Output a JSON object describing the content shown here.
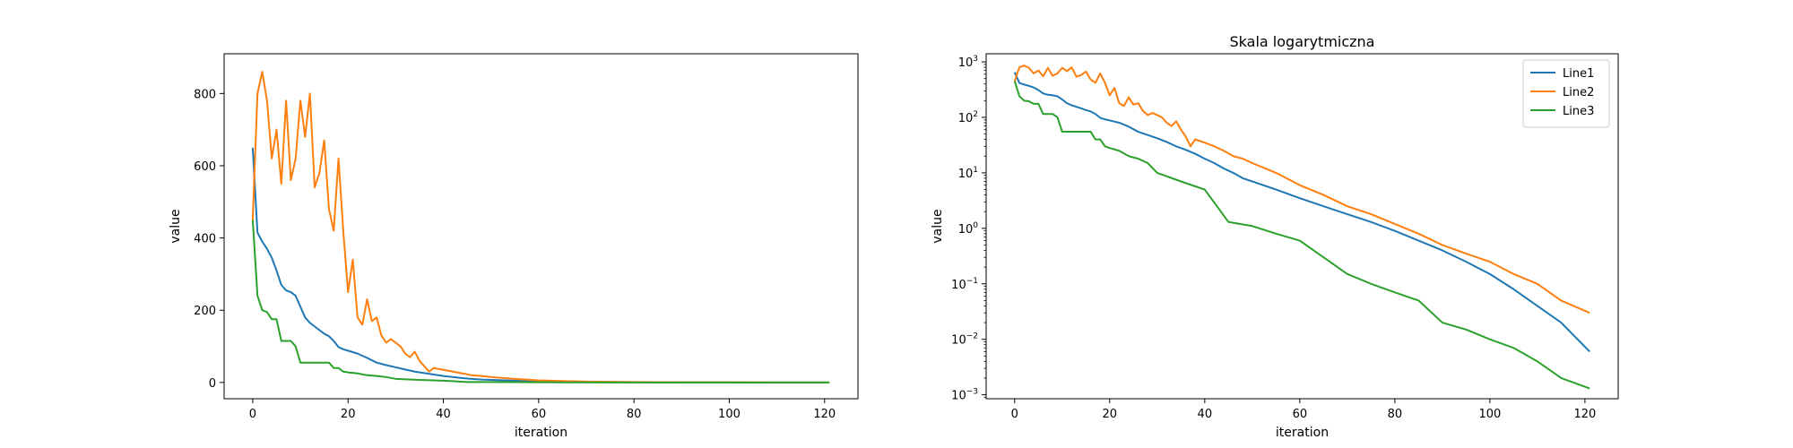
{
  "chart_data": [
    {
      "type": "line",
      "title": "",
      "xlabel": "iteration",
      "ylabel": "value",
      "xlim": [
        -6,
        127
      ],
      "ylim": [
        -45,
        910
      ],
      "yscale": "linear",
      "xticks": [
        0,
        20,
        40,
        60,
        80,
        100,
        120
      ],
      "xtick_labels": [
        "0",
        "20",
        "40",
        "60",
        "80",
        "100",
        "120"
      ],
      "yticks": [
        0,
        200,
        400,
        600,
        800
      ],
      "ytick_labels": [
        "0",
        "200",
        "400",
        "600",
        "800"
      ],
      "grid": false,
      "legend": null,
      "series": [
        {
          "color": "#1f77b4",
          "x": [
            0,
            1,
            2,
            3,
            4,
            5,
            6,
            7,
            8,
            9,
            10,
            11,
            12,
            13,
            14,
            15,
            16,
            17,
            18,
            19,
            20,
            22,
            24,
            26,
            28,
            30,
            32,
            34,
            36,
            38,
            40,
            42,
            44,
            46,
            48,
            50,
            55,
            60,
            65,
            70,
            75,
            80,
            85,
            90,
            95,
            100,
            105,
            110,
            115,
            121
          ],
          "y": [
            650,
            415,
            390,
            370,
            345,
            310,
            270,
            255,
            250,
            240,
            210,
            180,
            165,
            155,
            145,
            135,
            128,
            115,
            98,
            92,
            88,
            80,
            68,
            55,
            48,
            42,
            36,
            30,
            26,
            22,
            18,
            15,
            12,
            10,
            8,
            7,
            5,
            3.5,
            2.5,
            1.8,
            1.3,
            0.9,
            0.6,
            0.4,
            0.25,
            0.15,
            0.08,
            0.04,
            0.02,
            0.006
          ]
        },
        {
          "color": "#ff7f0e",
          "x": [
            0,
            1,
            2,
            3,
            4,
            5,
            6,
            7,
            8,
            9,
            10,
            11,
            12,
            13,
            14,
            15,
            16,
            17,
            18,
            19,
            20,
            21,
            22,
            23,
            24,
            25,
            26,
            27,
            28,
            29,
            30,
            31,
            32,
            33,
            34,
            35,
            36,
            37,
            38,
            40,
            42,
            44,
            46,
            48,
            50,
            55,
            60,
            65,
            70,
            75,
            80,
            85,
            90,
            95,
            100,
            105,
            110,
            115,
            121
          ],
          "y": [
            450,
            800,
            860,
            780,
            620,
            700,
            550,
            780,
            560,
            620,
            780,
            680,
            800,
            540,
            580,
            670,
            480,
            420,
            620,
            420,
            250,
            340,
            180,
            160,
            230,
            170,
            180,
            130,
            110,
            120,
            110,
            100,
            80,
            70,
            85,
            60,
            45,
            30,
            40,
            35,
            30,
            25,
            20,
            18,
            15,
            10,
            6,
            4,
            2.5,
            1.8,
            1.2,
            0.8,
            0.5,
            0.35,
            0.25,
            0.15,
            0.1,
            0.05,
            0.03
          ]
        },
        {
          "color": "#2ca02c",
          "x": [
            0,
            1,
            2,
            3,
            4,
            5,
            6,
            7,
            8,
            9,
            10,
            11,
            12,
            13,
            14,
            15,
            16,
            17,
            18,
            19,
            20,
            22,
            24,
            26,
            28,
            30,
            35,
            40,
            45,
            50,
            55,
            60,
            65,
            70,
            75,
            80,
            85,
            90,
            95,
            100,
            105,
            110,
            115,
            121
          ],
          "y": [
            450,
            240,
            200,
            195,
            175,
            175,
            115,
            115,
            115,
            100,
            55,
            55,
            55,
            55,
            55,
            55,
            55,
            40,
            40,
            30,
            28,
            25,
            20,
            18,
            15,
            10,
            7,
            5,
            1.3,
            1.1,
            0.8,
            0.6,
            0.3,
            0.15,
            0.1,
            0.07,
            0.05,
            0.02,
            0.015,
            0.01,
            0.007,
            0.004,
            0.002,
            0.0013
          ]
        }
      ]
    },
    {
      "type": "line",
      "title": "Skala logarytmiczna",
      "xlabel": "iteration",
      "ylabel": "value",
      "xlim": [
        -6,
        127
      ],
      "ylim": [
        0.00085,
        1400
      ],
      "yscale": "log",
      "xticks": [
        0,
        20,
        40,
        60,
        80,
        100,
        120
      ],
      "xtick_labels": [
        "0",
        "20",
        "40",
        "60",
        "80",
        "100",
        "120"
      ],
      "yticks": [
        0.001,
        0.01,
        0.1,
        1,
        10,
        100,
        1000
      ],
      "ytick_labels": [
        [
          "10",
          "−3"
        ],
        [
          "10",
          "−2"
        ],
        [
          "10",
          "−1"
        ],
        [
          "10",
          "0"
        ],
        [
          "10",
          "1"
        ],
        [
          "10",
          "2"
        ],
        [
          "10",
          "3"
        ]
      ],
      "grid": false,
      "legend": "top-right",
      "series": [
        {
          "name": "Line1",
          "color": "#1f77b4",
          "x": [
            0,
            1,
            2,
            3,
            4,
            5,
            6,
            7,
            8,
            9,
            10,
            11,
            12,
            13,
            14,
            15,
            16,
            17,
            18,
            19,
            20,
            22,
            24,
            26,
            28,
            30,
            32,
            34,
            36,
            38,
            40,
            42,
            44,
            46,
            48,
            50,
            55,
            60,
            65,
            70,
            75,
            80,
            85,
            90,
            95,
            100,
            105,
            110,
            115,
            121
          ],
          "y": [
            650,
            415,
            390,
            370,
            345,
            310,
            270,
            255,
            250,
            240,
            210,
            180,
            165,
            155,
            145,
            135,
            128,
            115,
            98,
            92,
            88,
            80,
            68,
            55,
            48,
            42,
            36,
            30,
            26,
            22,
            18,
            15,
            12,
            10,
            8,
            7,
            5,
            3.5,
            2.5,
            1.8,
            1.3,
            0.9,
            0.6,
            0.4,
            0.25,
            0.15,
            0.08,
            0.04,
            0.02,
            0.006
          ]
        },
        {
          "name": "Line2",
          "color": "#ff7f0e",
          "x": [
            0,
            1,
            2,
            3,
            4,
            5,
            6,
            7,
            8,
            9,
            10,
            11,
            12,
            13,
            14,
            15,
            16,
            17,
            18,
            19,
            20,
            21,
            22,
            23,
            24,
            25,
            26,
            27,
            28,
            29,
            30,
            31,
            32,
            33,
            34,
            35,
            36,
            37,
            38,
            40,
            42,
            44,
            46,
            48,
            50,
            55,
            60,
            65,
            70,
            75,
            80,
            85,
            90,
            95,
            100,
            105,
            110,
            115,
            121
          ],
          "y": [
            450,
            800,
            860,
            780,
            620,
            700,
            550,
            780,
            560,
            620,
            780,
            680,
            800,
            540,
            580,
            670,
            480,
            420,
            620,
            420,
            250,
            340,
            180,
            160,
            230,
            170,
            180,
            130,
            110,
            120,
            110,
            100,
            80,
            70,
            85,
            60,
            45,
            30,
            40,
            35,
            30,
            25,
            20,
            18,
            15,
            10,
            6,
            4,
            2.5,
            1.8,
            1.2,
            0.8,
            0.5,
            0.35,
            0.25,
            0.15,
            0.1,
            0.05,
            0.03
          ]
        },
        {
          "name": "Line3",
          "color": "#2ca02c",
          "x": [
            0,
            1,
            2,
            3,
            4,
            5,
            6,
            7,
            8,
            9,
            10,
            11,
            12,
            13,
            14,
            15,
            16,
            17,
            18,
            19,
            20,
            22,
            24,
            26,
            28,
            30,
            35,
            40,
            45,
            50,
            55,
            60,
            65,
            70,
            75,
            80,
            85,
            90,
            95,
            100,
            105,
            110,
            115,
            121
          ],
          "y": [
            450,
            240,
            200,
            195,
            175,
            175,
            115,
            115,
            115,
            100,
            55,
            55,
            55,
            55,
            55,
            55,
            55,
            40,
            40,
            30,
            28,
            25,
            20,
            18,
            15,
            10,
            7,
            5,
            1.3,
            1.1,
            0.8,
            0.6,
            0.3,
            0.15,
            0.1,
            0.07,
            0.05,
            0.02,
            0.015,
            0.01,
            0.007,
            0.004,
            0.002,
            0.0013
          ]
        }
      ]
    }
  ]
}
